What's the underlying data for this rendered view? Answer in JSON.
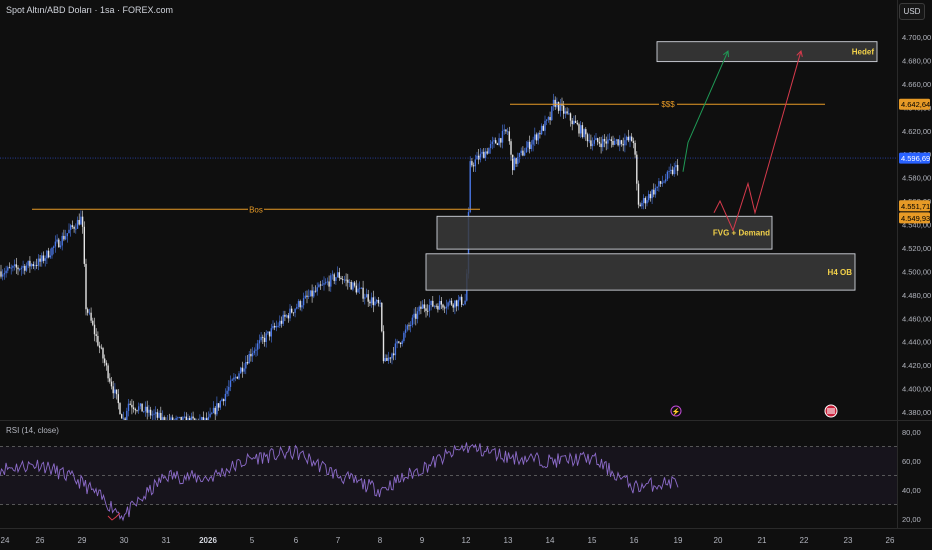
{
  "header": {
    "title": "Spot Altın/ABD Doları · 1sa · FOREX.com"
  },
  "currency_button": "USD",
  "colors": {
    "background": "#0f0f0f",
    "candle_up": "#4a78e8",
    "candle_down": "#e6e6e6",
    "level_line": "#e79a26",
    "current_price_line": "#2942a8",
    "rsi_line": "#8c6bc9",
    "zone_fill": "#3a3a3a",
    "zone_label": "#f3d24a",
    "green_projection": "#1f9a56",
    "red_projection": "#d63a4c"
  },
  "chart_data": [
    {
      "type": "candlestick",
      "title": "Spot Altın/ABD Doları · 1sa · FOREX.com",
      "ylim": [
        4370,
        4720
      ],
      "y_ticks": [
        "4.700,00",
        "4.680,00",
        "4.660,00",
        "4.640,00",
        "4.620,00",
        "4.600,00",
        "4.580,00",
        "4.560,00",
        "4.540,00",
        "4.520,00",
        "4.500,00",
        "4.480,00",
        "4.460,00",
        "4.440,00",
        "4.420,00",
        "4.400,00",
        "4.380,00"
      ],
      "x_ticks": [
        "24",
        "26",
        "29",
        "30",
        "31",
        "2026",
        "5",
        "6",
        "7",
        "8",
        "9",
        "12",
        "13",
        "14",
        "15",
        "16",
        "19",
        "20",
        "21",
        "22",
        "23",
        "26"
      ],
      "price_tags": [
        {
          "label": "4.642,64",
          "value": 4642.64,
          "kind": "level"
        },
        {
          "label": "4.596,69",
          "value": 4596.69,
          "kind": "current"
        },
        {
          "label": "4.551,71",
          "value": 4551.71,
          "kind": "level"
        },
        {
          "label": "4.549,93",
          "value": 4549.93,
          "kind": "level"
        }
      ],
      "annotations": [
        {
          "type": "hline",
          "label": "Bos",
          "value": 4553
        },
        {
          "type": "hline",
          "label": "$$$",
          "value": 4642.64
        },
        {
          "type": "zone",
          "label": "Hedef",
          "from": 4679,
          "to": 4696
        },
        {
          "type": "zone",
          "label": "FVG + Demand",
          "from": 4519,
          "to": 4547
        },
        {
          "type": "zone",
          "label": "H4 OB",
          "from": 4484,
          "to": 4515
        }
      ],
      "path_keypoints": [
        {
          "x": "24",
          "y": 4500
        },
        {
          "x": "26",
          "y": 4508
        },
        {
          "x": "29",
          "y": 4546
        },
        {
          "x": "29",
          "y": 4470
        },
        {
          "x": "30",
          "y": 4372
        },
        {
          "x": "30",
          "y": 4388
        },
        {
          "x": "31",
          "y": 4372
        },
        {
          "x": "2026",
          "y": 4372
        },
        {
          "x": "5",
          "y": 4432
        },
        {
          "x": "6",
          "y": 4470
        },
        {
          "x": "7",
          "y": 4497
        },
        {
          "x": "8",
          "y": 4470
        },
        {
          "x": "8",
          "y": 4420
        },
        {
          "x": "9",
          "y": 4470
        },
        {
          "x": "12",
          "y": 4475
        },
        {
          "x": "12",
          "y": 4590
        },
        {
          "x": "13",
          "y": 4620
        },
        {
          "x": "13",
          "y": 4590
        },
        {
          "x": "14",
          "y": 4630
        },
        {
          "x": "14",
          "y": 4645
        },
        {
          "x": "15",
          "y": 4610
        },
        {
          "x": "16",
          "y": 4612
        },
        {
          "x": "16",
          "y": 4555
        },
        {
          "x": "19",
          "y": 4590
        }
      ],
      "projections": [
        {
          "name": "green",
          "points": [
            {
              "x": "19",
              "y": 4585
            },
            {
              "x": "19",
              "y": 4610
            },
            {
              "x": "21",
              "y": 4688
            }
          ]
        },
        {
          "name": "red",
          "points": [
            {
              "x": "20",
              "y": 4550
            },
            {
              "x": "20",
              "y": 4560
            },
            {
              "x": "20",
              "y": 4535
            },
            {
              "x": "21",
              "y": 4575
            },
            {
              "x": "21",
              "y": 4550
            },
            {
              "x": "22",
              "y": 4688
            }
          ]
        }
      ]
    },
    {
      "type": "line",
      "title": "RSI (14, close)",
      "ylim": [
        14,
        85
      ],
      "y_ticks": [
        "80,00",
        "60,00",
        "40,00",
        "20,00"
      ],
      "bands": [
        30,
        50,
        70
      ],
      "series": [
        {
          "name": "RSI (14, close)",
          "keypoints": [
            {
              "x": "24",
              "y": 55
            },
            {
              "x": "26",
              "y": 58
            },
            {
              "x": "29",
              "y": 45
            },
            {
              "x": "30",
              "y": 22
            },
            {
              "x": "31",
              "y": 50
            },
            {
              "x": "2026",
              "y": 48
            },
            {
              "x": "5",
              "y": 62
            },
            {
              "x": "6",
              "y": 66
            },
            {
              "x": "7",
              "y": 50
            },
            {
              "x": "8",
              "y": 40
            },
            {
              "x": "9",
              "y": 55
            },
            {
              "x": "12",
              "y": 70
            },
            {
              "x": "13",
              "y": 63
            },
            {
              "x": "14",
              "y": 60
            },
            {
              "x": "15",
              "y": 62
            },
            {
              "x": "16",
              "y": 42
            },
            {
              "x": "19",
              "y": 46
            }
          ]
        }
      ]
    }
  ]
}
